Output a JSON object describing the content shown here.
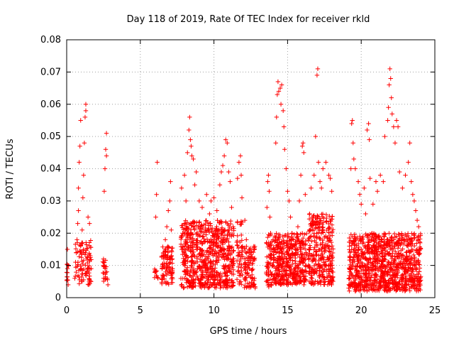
{
  "chart_data": {
    "type": "scatter",
    "title": "Day 118 of 2019, Rate Of TEC Index for receiver rkld",
    "xlabel": "GPS time / hours",
    "ylabel": "ROTI / TECUs",
    "xlim": [
      0,
      25
    ],
    "ylim": [
      0,
      0.08
    ],
    "xticks": [
      "0",
      "5",
      "10",
      "15",
      "20",
      "25"
    ],
    "yticks": [
      "0",
      "0.01",
      "0.02",
      "0.03",
      "0.04",
      "0.05",
      "0.06",
      "0.07",
      "0.08"
    ],
    "grid": true,
    "marker": "+",
    "color": "#ff0000",
    "series": [
      {
        "name": "ROTI",
        "points": [
          [
            0.05,
            0.009
          ],
          [
            0.05,
            0.015
          ],
          [
            0.1,
            0.004
          ],
          [
            0.1,
            0.01
          ],
          [
            0.55,
            0.006
          ],
          [
            0.6,
            0.011
          ],
          [
            0.65,
            0.014
          ],
          [
            0.7,
            0.018
          ],
          [
            0.75,
            0.023
          ],
          [
            0.8,
            0.027
          ],
          [
            0.8,
            0.034
          ],
          [
            0.85,
            0.042
          ],
          [
            0.9,
            0.047
          ],
          [
            0.95,
            0.055
          ],
          [
            0.95,
            0.016
          ],
          [
            1.0,
            0.009
          ],
          [
            1.05,
            0.021
          ],
          [
            1.1,
            0.031
          ],
          [
            1.15,
            0.038
          ],
          [
            1.2,
            0.048
          ],
          [
            1.25,
            0.056
          ],
          [
            1.3,
            0.06
          ],
          [
            1.3,
            0.058
          ],
          [
            1.35,
            0.012
          ],
          [
            1.4,
            0.008
          ],
          [
            1.45,
            0.025
          ],
          [
            1.5,
            0.004
          ],
          [
            1.55,
            0.023
          ],
          [
            1.6,
            0.013
          ],
          [
            1.65,
            0.005
          ],
          [
            2.5,
            0.012
          ],
          [
            2.55,
            0.033
          ],
          [
            2.6,
            0.04
          ],
          [
            2.65,
            0.046
          ],
          [
            2.7,
            0.051
          ],
          [
            2.7,
            0.044
          ],
          [
            2.75,
            0.006
          ],
          [
            2.8,
            0.004
          ],
          [
            6.0,
            0.008
          ],
          [
            6.05,
            0.025
          ],
          [
            6.1,
            0.032
          ],
          [
            6.15,
            0.042
          ],
          [
            6.2,
            0.006
          ],
          [
            6.5,
            0.007
          ],
          [
            6.6,
            0.012
          ],
          [
            6.7,
            0.018
          ],
          [
            6.8,
            0.022
          ],
          [
            6.9,
            0.027
          ],
          [
            7.0,
            0.03
          ],
          [
            7.05,
            0.036
          ],
          [
            7.1,
            0.021
          ],
          [
            7.15,
            0.009
          ],
          [
            7.8,
            0.034
          ],
          [
            8.0,
            0.038
          ],
          [
            8.1,
            0.03
          ],
          [
            8.2,
            0.045
          ],
          [
            8.3,
            0.052
          ],
          [
            8.35,
            0.056
          ],
          [
            8.4,
            0.049
          ],
          [
            8.45,
            0.047
          ],
          [
            8.5,
            0.044
          ],
          [
            8.6,
            0.043
          ],
          [
            8.7,
            0.035
          ],
          [
            8.8,
            0.039
          ],
          [
            9.0,
            0.03
          ],
          [
            9.2,
            0.028
          ],
          [
            9.5,
            0.032
          ],
          [
            9.7,
            0.026
          ],
          [
            9.8,
            0.03
          ],
          [
            10.0,
            0.031
          ],
          [
            10.2,
            0.027
          ],
          [
            10.4,
            0.035
          ],
          [
            10.5,
            0.039
          ],
          [
            10.6,
            0.041
          ],
          [
            10.7,
            0.044
          ],
          [
            10.8,
            0.049
          ],
          [
            10.9,
            0.048
          ],
          [
            11.0,
            0.039
          ],
          [
            11.1,
            0.036
          ],
          [
            11.2,
            0.028
          ],
          [
            11.3,
            0.022
          ],
          [
            11.6,
            0.037
          ],
          [
            11.7,
            0.042
          ],
          [
            11.8,
            0.044
          ],
          [
            11.85,
            0.038
          ],
          [
            11.9,
            0.031
          ],
          [
            12.1,
            0.024
          ],
          [
            12.2,
            0.018
          ],
          [
            12.4,
            0.009
          ],
          [
            12.5,
            0.012
          ],
          [
            12.6,
            0.006
          ],
          [
            12.7,
            0.004
          ],
          [
            12.8,
            0.003
          ],
          [
            13.6,
            0.028
          ],
          [
            13.65,
            0.036
          ],
          [
            13.7,
            0.038
          ],
          [
            13.75,
            0.033
          ],
          [
            13.8,
            0.025
          ],
          [
            13.85,
            0.02
          ],
          [
            13.9,
            0.007
          ],
          [
            14.0,
            0.01
          ],
          [
            14.1,
            0.015
          ],
          [
            14.2,
            0.048
          ],
          [
            14.25,
            0.056
          ],
          [
            14.3,
            0.063
          ],
          [
            14.35,
            0.067
          ],
          [
            14.4,
            0.064
          ],
          [
            14.5,
            0.065
          ],
          [
            14.55,
            0.06
          ],
          [
            14.6,
            0.066
          ],
          [
            14.7,
            0.058
          ],
          [
            14.75,
            0.053
          ],
          [
            14.8,
            0.046
          ],
          [
            14.9,
            0.04
          ],
          [
            15.0,
            0.033
          ],
          [
            15.1,
            0.03
          ],
          [
            15.2,
            0.025
          ],
          [
            15.3,
            0.02
          ],
          [
            15.4,
            0.018
          ],
          [
            15.5,
            0.016
          ],
          [
            15.6,
            0.014
          ],
          [
            15.7,
            0.022
          ],
          [
            15.8,
            0.03
          ],
          [
            15.9,
            0.038
          ],
          [
            16.0,
            0.047
          ],
          [
            16.05,
            0.048
          ],
          [
            16.1,
            0.045
          ],
          [
            16.2,
            0.032
          ],
          [
            16.5,
            0.026
          ],
          [
            16.6,
            0.034
          ],
          [
            16.8,
            0.038
          ],
          [
            16.9,
            0.05
          ],
          [
            17.0,
            0.069
          ],
          [
            17.05,
            0.071
          ],
          [
            17.1,
            0.042
          ],
          [
            17.2,
            0.036
          ],
          [
            17.3,
            0.034
          ],
          [
            17.4,
            0.04
          ],
          [
            17.6,
            0.042
          ],
          [
            17.8,
            0.038
          ],
          [
            17.9,
            0.037
          ],
          [
            18.0,
            0.033
          ],
          [
            19.2,
            0.016
          ],
          [
            19.3,
            0.04
          ],
          [
            19.35,
            0.054
          ],
          [
            19.4,
            0.055
          ],
          [
            19.45,
            0.048
          ],
          [
            19.5,
            0.043
          ],
          [
            19.6,
            0.04
          ],
          [
            19.8,
            0.036
          ],
          [
            19.9,
            0.032
          ],
          [
            20.0,
            0.029
          ],
          [
            20.2,
            0.034
          ],
          [
            20.3,
            0.026
          ],
          [
            20.4,
            0.052
          ],
          [
            20.5,
            0.054
          ],
          [
            20.55,
            0.049
          ],
          [
            20.6,
            0.037
          ],
          [
            20.8,
            0.029
          ],
          [
            21.0,
            0.036
          ],
          [
            21.1,
            0.033
          ],
          [
            21.3,
            0.038
          ],
          [
            21.5,
            0.036
          ],
          [
            21.6,
            0.05
          ],
          [
            21.8,
            0.055
          ],
          [
            21.85,
            0.059
          ],
          [
            21.9,
            0.066
          ],
          [
            21.95,
            0.071
          ],
          [
            22.0,
            0.068
          ],
          [
            22.05,
            0.062
          ],
          [
            22.1,
            0.057
          ],
          [
            22.2,
            0.053
          ],
          [
            22.3,
            0.048
          ],
          [
            22.4,
            0.055
          ],
          [
            22.5,
            0.053
          ],
          [
            22.6,
            0.039
          ],
          [
            22.8,
            0.034
          ],
          [
            23.0,
            0.038
          ],
          [
            23.2,
            0.042
          ],
          [
            23.3,
            0.048
          ],
          [
            23.4,
            0.036
          ],
          [
            23.5,
            0.032
          ],
          [
            23.6,
            0.03
          ],
          [
            23.7,
            0.027
          ],
          [
            23.8,
            0.024
          ],
          [
            23.9,
            0.022
          ],
          [
            24.0,
            0.017
          ]
        ]
      }
    ],
    "dense_bands": [
      {
        "x_start": 0.0,
        "x_end": 0.15,
        "y_min": 0.005,
        "y_max": 0.011,
        "n": 10
      },
      {
        "x_start": 0.55,
        "x_end": 1.7,
        "y_min": 0.004,
        "y_max": 0.018,
        "n": 90
      },
      {
        "x_start": 2.45,
        "x_end": 2.8,
        "y_min": 0.005,
        "y_max": 0.012,
        "n": 22
      },
      {
        "x_start": 5.95,
        "x_end": 6.2,
        "y_min": 0.006,
        "y_max": 0.009,
        "n": 10
      },
      {
        "x_start": 6.45,
        "x_end": 7.2,
        "y_min": 0.004,
        "y_max": 0.016,
        "n": 90
      },
      {
        "x_start": 7.75,
        "x_end": 11.35,
        "y_min": 0.003,
        "y_max": 0.024,
        "n": 700
      },
      {
        "x_start": 11.55,
        "x_end": 11.95,
        "y_min": 0.004,
        "y_max": 0.024,
        "n": 50
      },
      {
        "x_start": 12.05,
        "x_end": 12.8,
        "y_min": 0.003,
        "y_max": 0.016,
        "n": 90
      },
      {
        "x_start": 13.55,
        "x_end": 13.95,
        "y_min": 0.003,
        "y_max": 0.02,
        "n": 60
      },
      {
        "x_start": 14.0,
        "x_end": 16.3,
        "y_min": 0.004,
        "y_max": 0.02,
        "n": 420
      },
      {
        "x_start": 16.4,
        "x_end": 18.1,
        "y_min": 0.004,
        "y_max": 0.026,
        "n": 320
      },
      {
        "x_start": 19.15,
        "x_end": 24.05,
        "y_min": 0.002,
        "y_max": 0.02,
        "n": 1000
      }
    ]
  }
}
